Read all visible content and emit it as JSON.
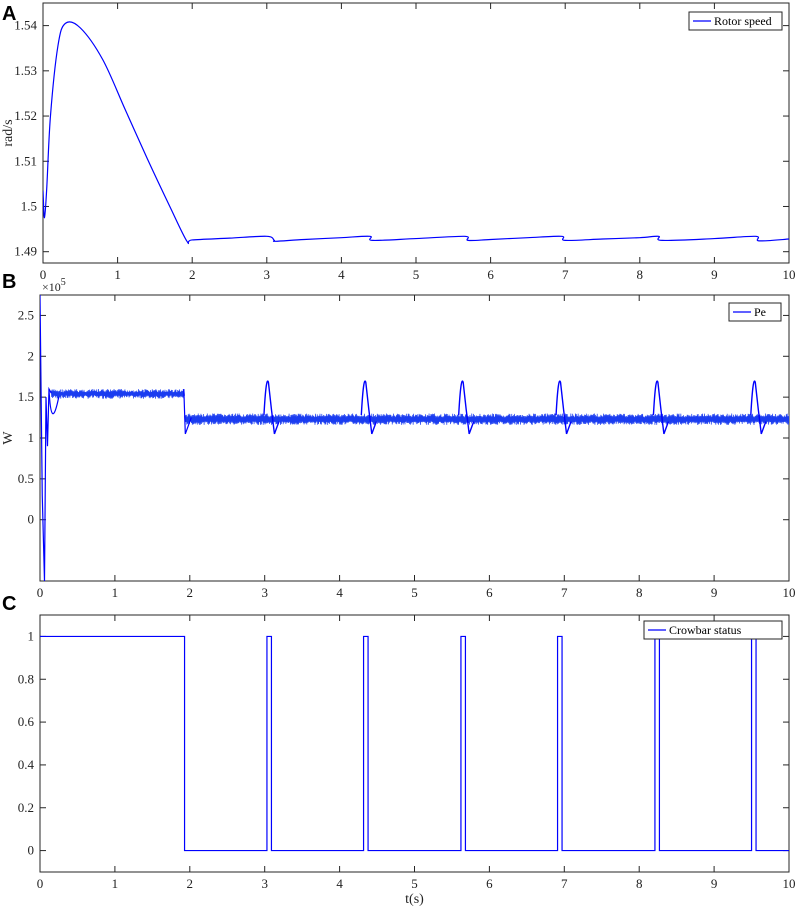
{
  "chart_data": [
    {
      "panel": "A",
      "type": "line",
      "ylabel": "rad/s",
      "xlabel": "",
      "xlim": [
        0,
        10
      ],
      "ylim": [
        1.4875,
        1.545
      ],
      "xticks": [
        0,
        1,
        2,
        3,
        4,
        5,
        6,
        7,
        8,
        9,
        10
      ],
      "yticks": [
        "1.49",
        "1.5",
        "1.51",
        "1.52",
        "1.53",
        "1.54"
      ],
      "ytick_values": [
        1.49,
        1.5,
        1.51,
        1.52,
        1.53,
        1.54
      ],
      "legend_position": "top-right",
      "line_color": "#0000ff",
      "series": [
        {
          "name": "Rotor speed",
          "x": [
            0,
            0.02,
            0.05,
            0.1,
            0.2,
            0.3,
            0.5,
            0.8,
            1.1,
            1.4,
            1.7,
            1.93,
            2.0,
            2.5,
            3.0,
            3.1,
            3.12,
            3.5,
            4.0,
            4.38,
            4.42,
            5.0,
            5.65,
            5.7,
            6.0,
            6.5,
            6.95,
            7.0,
            7.5,
            8.0,
            8.25,
            8.3,
            9.0,
            9.55,
            9.6,
            10.0
          ],
          "y": [
            1.5035,
            1.4975,
            1.504,
            1.52,
            1.5355,
            1.5405,
            1.5395,
            1.5325,
            1.5215,
            1.5105,
            1.5,
            1.4923,
            1.4926,
            1.493,
            1.4934,
            1.4925,
            1.4923,
            1.4927,
            1.4931,
            1.4934,
            1.4925,
            1.4929,
            1.4934,
            1.4925,
            1.4927,
            1.4931,
            1.4934,
            1.4925,
            1.4928,
            1.4931,
            1.4934,
            1.4925,
            1.4929,
            1.4934,
            1.4924,
            1.4928
          ]
        }
      ]
    },
    {
      "panel": "B",
      "type": "line",
      "ylabel": "W",
      "xlabel": "",
      "exponent_label": "×10",
      "exponent_power": "5",
      "xlim": [
        0,
        10
      ],
      "ylim": [
        -0.75,
        2.75
      ],
      "xticks": [
        0,
        1,
        2,
        3,
        4,
        5,
        6,
        7,
        8,
        9,
        10
      ],
      "yticks": [
        "0",
        "0.5",
        "1",
        "1.5",
        "2",
        "2.5"
      ],
      "ytick_values": [
        0,
        0.5,
        1,
        1.5,
        2,
        2.5
      ],
      "legend_position": "top-right",
      "line_color": "#0000ff",
      "band_color": "#1a3cf0",
      "series": [
        {
          "name": "Pe",
          "segments": [
            {
              "x_start": 0.15,
              "x_end": 1.93,
              "upper": 1.6,
              "lower": 1.48
            },
            {
              "x_start": 1.93,
              "x_end": 10,
              "upper": 1.3,
              "lower": 1.16
            }
          ],
          "startup_x": [
            0,
            0.03,
            0.06,
            0.08,
            0.1,
            0.12,
            0.15
          ],
          "startup_y": [
            2.75,
            0.3,
            -0.75,
            1.5,
            0.9,
            1.6,
            1.55
          ],
          "spike_times": [
            3.05,
            4.35,
            5.65,
            6.95,
            8.25,
            9.55
          ],
          "spike_peak": 1.68,
          "spike_dip": 1.05
        }
      ]
    },
    {
      "panel": "C",
      "type": "line",
      "ylabel": "",
      "xlabel": "t(s)",
      "xlim": [
        0,
        10
      ],
      "ylim": [
        -0.1,
        1.1
      ],
      "xticks": [
        0,
        1,
        2,
        3,
        4,
        5,
        6,
        7,
        8,
        9,
        10
      ],
      "yticks": [
        "0",
        "0.2",
        "0.4",
        "0.6",
        "0.8",
        "1"
      ],
      "ytick_values": [
        0,
        0.2,
        0.4,
        0.6,
        0.8,
        1
      ],
      "legend_position": "top-right",
      "line_color": "#0000ff",
      "series": [
        {
          "name": "Crowbar status",
          "x": [
            0,
            1.93,
            1.93,
            3.03,
            3.03,
            3.09,
            3.09,
            4.32,
            4.32,
            4.38,
            4.38,
            5.62,
            5.62,
            5.68,
            5.68,
            6.91,
            6.91,
            6.97,
            6.97,
            8.21,
            8.21,
            8.27,
            8.27,
            9.5,
            9.5,
            9.56,
            9.56,
            10
          ],
          "y": [
            1,
            1,
            0,
            0,
            1,
            1,
            0,
            0,
            1,
            1,
            0,
            0,
            1,
            1,
            0,
            0,
            1,
            1,
            0,
            0,
            1,
            1,
            0,
            0,
            1,
            1,
            0,
            0
          ]
        }
      ]
    }
  ]
}
